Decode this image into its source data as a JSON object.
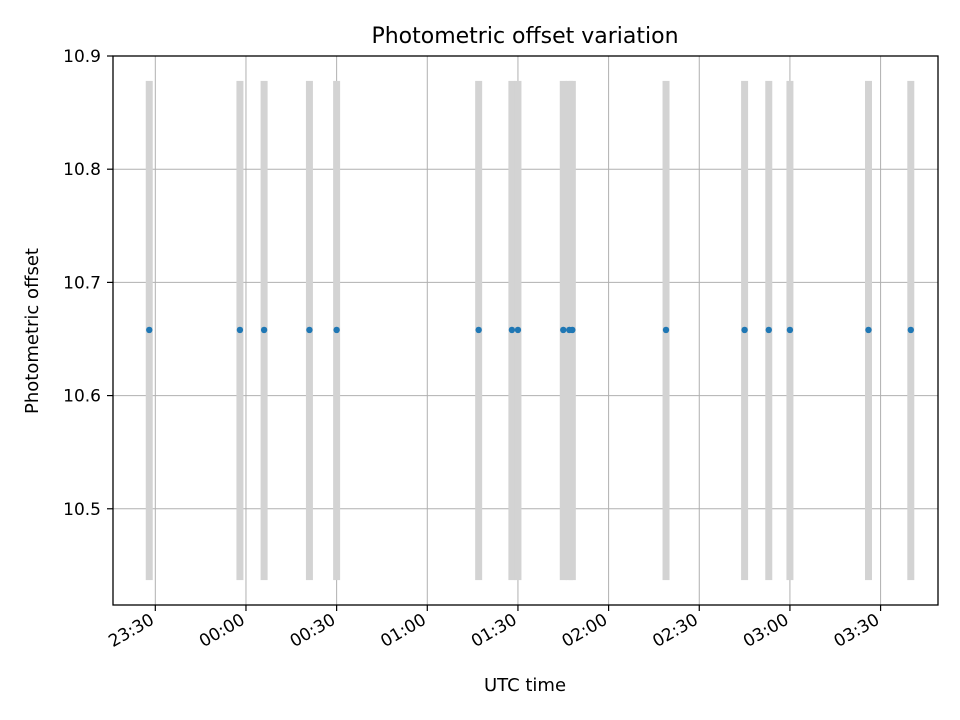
{
  "chart_data": {
    "type": "scatter",
    "title": "Photometric offset variation",
    "xlabel": "UTC time",
    "ylabel": "Photometric offset",
    "xlim": [
      "23:16",
      "03:49"
    ],
    "ylim": [
      10.415,
      10.9
    ],
    "x_ticks": [
      "23:30",
      "00:00",
      "00:30",
      "01:00",
      "01:30",
      "02:00",
      "02:30",
      "03:00",
      "03:30"
    ],
    "y_ticks": [
      "10.5",
      "10.6",
      "10.7",
      "10.8",
      "10.9"
    ],
    "grid": true,
    "points": [
      {
        "x": "23:28",
        "y": 10.658
      },
      {
        "x": "23:58",
        "y": 10.658
      },
      {
        "x": "00:06",
        "y": 10.658
      },
      {
        "x": "00:21",
        "y": 10.658
      },
      {
        "x": "00:30",
        "y": 10.658
      },
      {
        "x": "01:17",
        "y": 10.658
      },
      {
        "x": "01:28",
        "y": 10.658
      },
      {
        "x": "01:30",
        "y": 10.658
      },
      {
        "x": "01:45",
        "y": 10.658
      },
      {
        "x": "01:47",
        "y": 10.658
      },
      {
        "x": "01:48",
        "y": 10.658
      },
      {
        "x": "02:19",
        "y": 10.658
      },
      {
        "x": "02:45",
        "y": 10.658
      },
      {
        "x": "02:53",
        "y": 10.658
      },
      {
        "x": "03:00",
        "y": 10.658
      },
      {
        "x": "03:26",
        "y": 10.658
      },
      {
        "x": "03:40",
        "y": 10.658
      }
    ],
    "error_bars": {
      "lower": 10.437,
      "upper": 10.878,
      "color": "#d3d3d3"
    },
    "colors": {
      "points": "#1f77b4",
      "grid": "#b0b0b0",
      "axes": "#000000"
    }
  }
}
